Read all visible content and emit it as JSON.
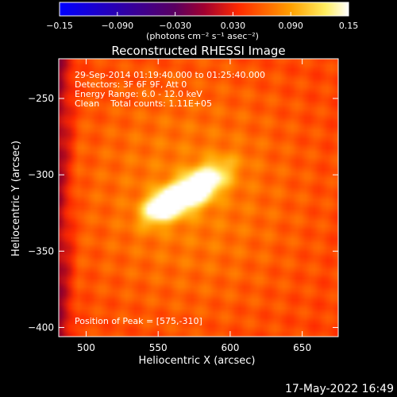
{
  "chart_data": {
    "type": "heatmap",
    "title": "Reconstructed RHESSI Image",
    "xlabel": "Heliocentric X (arcsec)",
    "ylabel": "Heliocentric Y (arcsec)",
    "xlim": [
      481,
      675
    ],
    "ylim": [
      -406,
      -224
    ],
    "xticks": [
      500,
      550,
      600,
      650
    ],
    "yticks": [
      -250,
      -300,
      -350,
      -400
    ],
    "xtick_labels": [
      "500",
      "550",
      "600",
      "650"
    ],
    "ytick_labels": [
      "−250",
      "−300",
      "−350",
      "−400"
    ],
    "colorbar": {
      "range": [
        -0.15,
        0.15
      ],
      "ticks": [
        -0.15,
        -0.09,
        -0.03,
        0.03,
        0.09,
        0.15
      ],
      "tick_labels": [
        "−0.15",
        "−0.090",
        "−0.030",
        "0.030",
        "0.090",
        "0.15"
      ],
      "unit_label": "(photons cm⁻² s⁻¹ asec⁻²)"
    },
    "annotations": {
      "line1": "29-Sep-2014 01:19:40.000 to 01:25:40.000",
      "line2": "Detectors: 3F 6F 9F, Att 0",
      "line3": "Energy Range: 6.0 - 12.0 keV",
      "line4": "Clean    Total counts: 1.11E+05",
      "peak": "Position of Peak = [575,-310]"
    },
    "peak": [
      575,
      -310
    ],
    "sources": [
      {
        "x": 576,
        "y": -309,
        "amp": 0.14
      },
      {
        "x": 553,
        "y": -320,
        "amp": 0.115
      }
    ],
    "colors": {
      "background": "#000000",
      "text": "#ffffff"
    }
  },
  "footer": {
    "date": "17-May-2022 16:49"
  }
}
